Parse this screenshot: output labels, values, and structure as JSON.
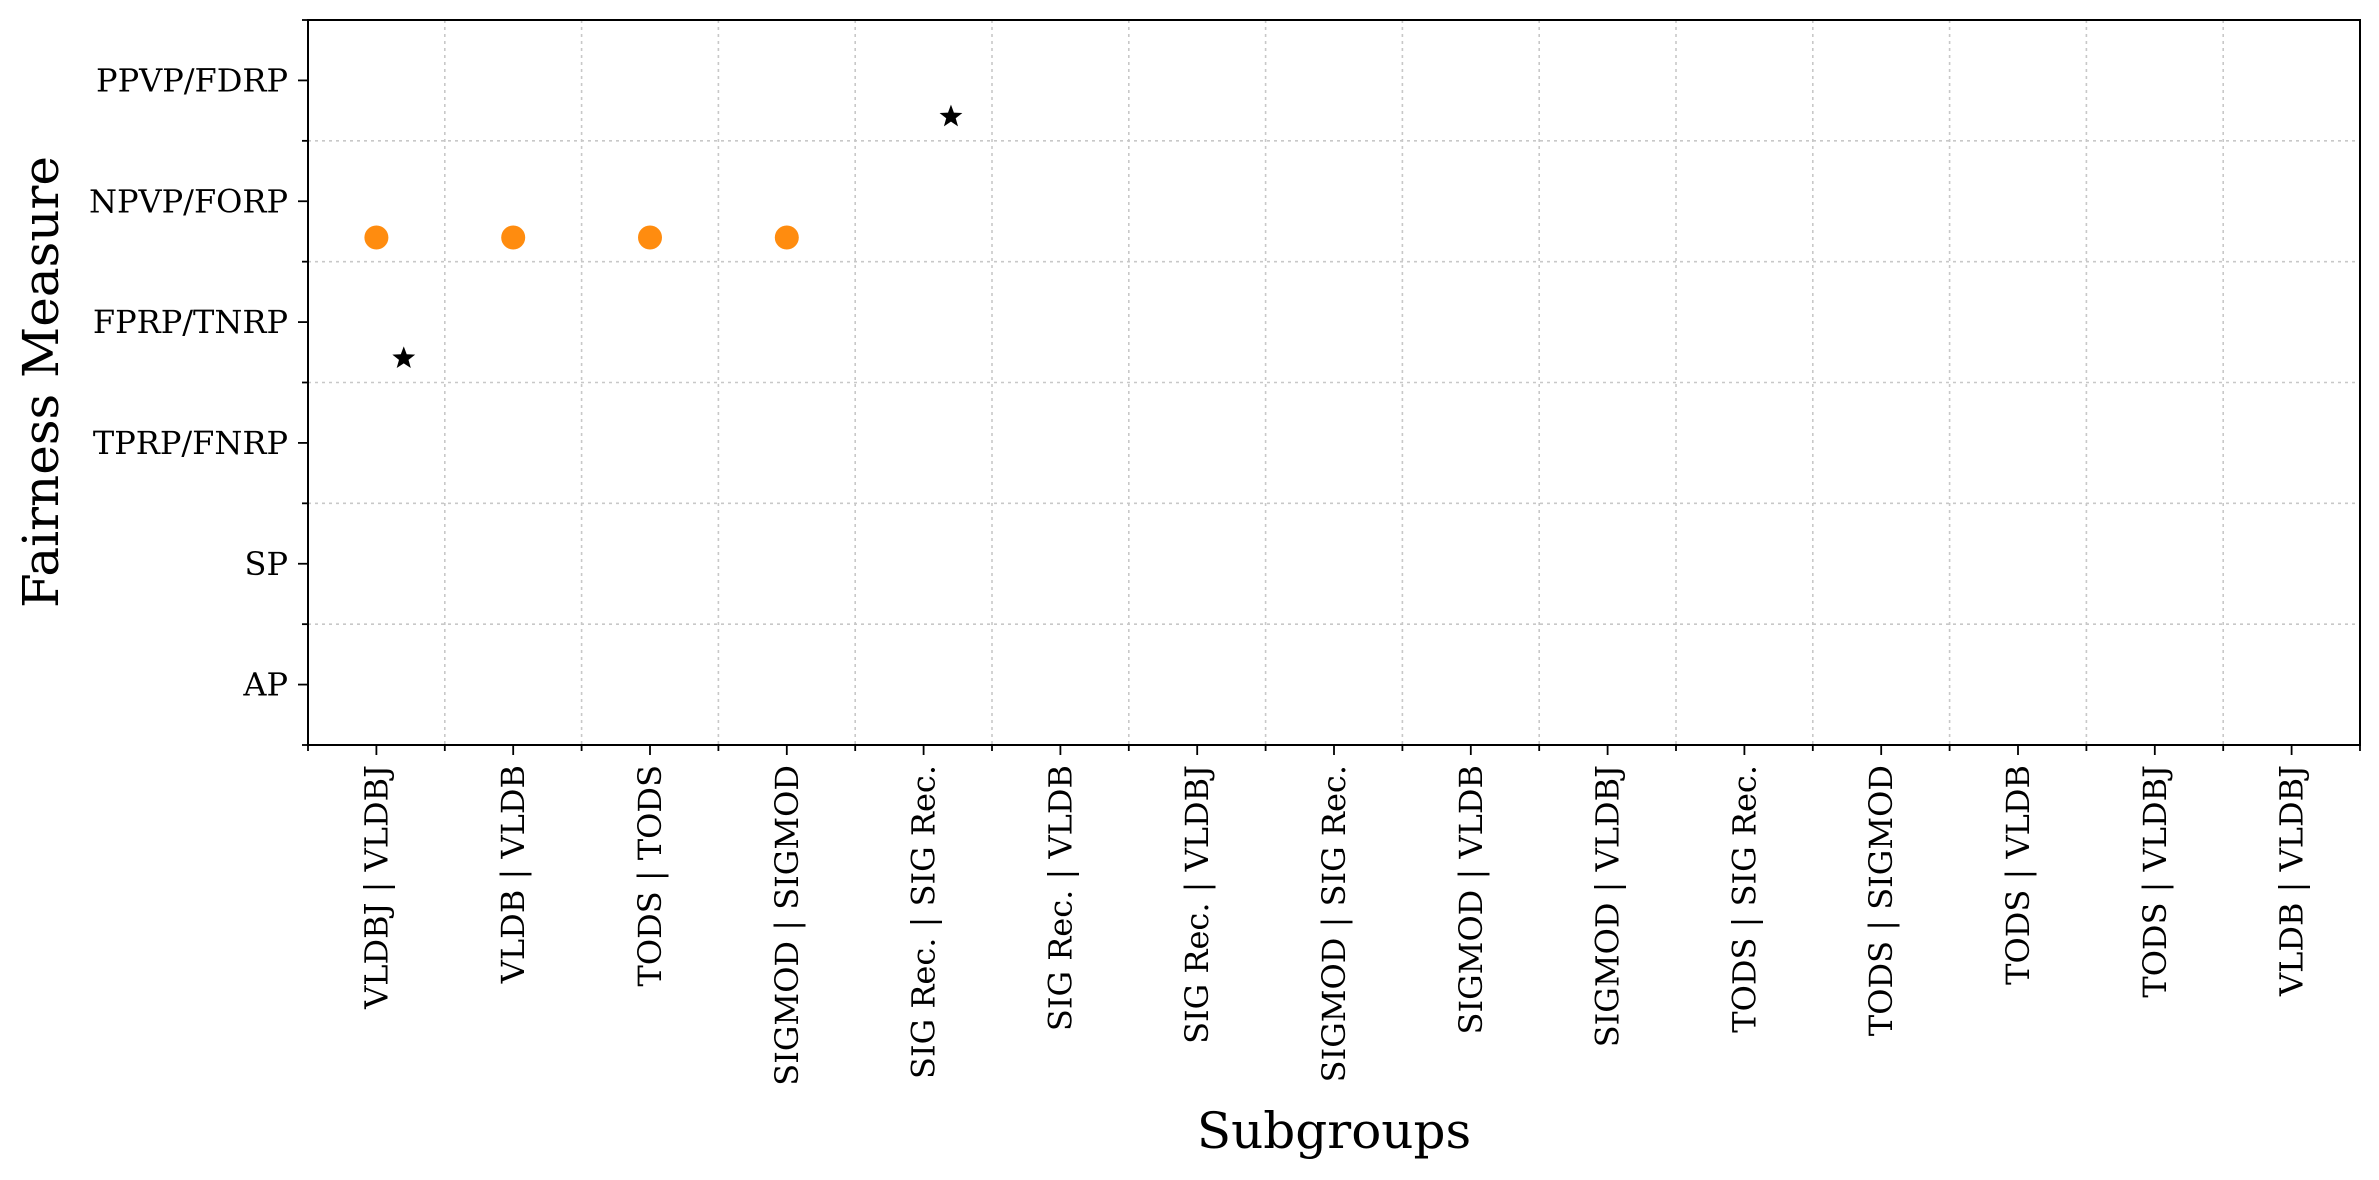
{
  "chart_data": {
    "type": "scatter",
    "title": "",
    "xlabel": "Subgroups",
    "ylabel": "Fairness Measure",
    "categories_x": [
      "VLDBJ | VLDBJ",
      "VLDB | VLDB",
      "TODS | TODS",
      "SIGMOD | SIGMOD",
      "SIG Rec. | SIG Rec.",
      "SIG Rec. | VLDB",
      "SIG Rec. | VLDBJ",
      "SIGMOD | SIG Rec.",
      "SIGMOD | VLDB",
      "SIGMOD | VLDBJ",
      "TODS | SIG Rec.",
      "TODS | SIGMOD",
      "TODS | VLDB",
      "TODS | VLDBJ",
      "VLDB | VLDBJ"
    ],
    "categories_y": [
      "AP",
      "SP",
      "TPRP/FNRP",
      "FPRP/TNRP",
      "NPVP/FORP",
      "PPVP/FDRP"
    ],
    "grid": true,
    "series": [
      {
        "marker": "circle",
        "color": "#ff8c0f",
        "points": [
          {
            "x": "VLDBJ | VLDBJ",
            "y": "NPVP/FORP",
            "x_offset": 0.0,
            "y_offset": -0.3
          },
          {
            "x": "VLDB | VLDB",
            "y": "NPVP/FORP",
            "x_offset": 0.0,
            "y_offset": -0.3
          },
          {
            "x": "TODS | TODS",
            "y": "NPVP/FORP",
            "x_offset": 0.0,
            "y_offset": -0.3
          },
          {
            "x": "SIGMOD | SIGMOD",
            "y": "NPVP/FORP",
            "x_offset": 0.0,
            "y_offset": -0.3
          }
        ]
      },
      {
        "marker": "star",
        "color": "#000000",
        "points": [
          {
            "x": "VLDBJ | VLDBJ",
            "y": "FPRP/TNRP",
            "x_offset": 0.2,
            "y_offset": -0.3
          },
          {
            "x": "SIG Rec. | SIG Rec.",
            "y": "PPVP/FDRP",
            "x_offset": 0.2,
            "y_offset": -0.3
          }
        ]
      }
    ]
  }
}
